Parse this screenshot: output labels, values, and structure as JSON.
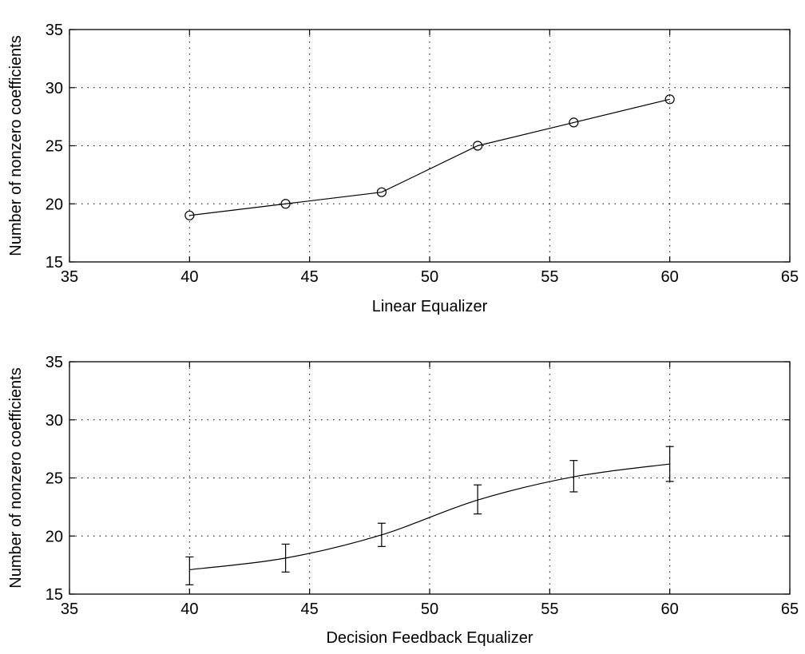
{
  "chart_data": [
    {
      "type": "line",
      "title": "",
      "xlabel": "Linear Equalizer",
      "ylabel": "Number of nonzero coefficients",
      "xlim": [
        35,
        65
      ],
      "ylim": [
        15,
        35
      ],
      "xticks": [
        35,
        40,
        45,
        50,
        55,
        60,
        65
      ],
      "yticks": [
        15,
        20,
        25,
        30,
        35
      ],
      "grid": true,
      "marker": "circle",
      "x": [
        40,
        44,
        48,
        52,
        56,
        60
      ],
      "y": [
        19,
        20,
        21,
        25,
        27,
        29
      ]
    },
    {
      "type": "line",
      "title": "",
      "xlabel": "Decision Feedback Equalizer",
      "ylabel": "Number of nonzero coefficients",
      "xlim": [
        35,
        65
      ],
      "ylim": [
        15,
        35
      ],
      "xticks": [
        35,
        40,
        45,
        50,
        55,
        60,
        65
      ],
      "yticks": [
        15,
        20,
        25,
        30,
        35
      ],
      "grid": true,
      "marker": "errorbar",
      "x": [
        40,
        44,
        48,
        52,
        56,
        60
      ],
      "y": [
        17.1,
        18.1,
        20.1,
        23.1,
        25.1,
        26.2
      ],
      "err_low": [
        15.8,
        16.9,
        19.1,
        21.9,
        23.8,
        24.7
      ],
      "err_high": [
        18.2,
        19.3,
        21.1,
        24.4,
        26.5,
        27.7
      ]
    }
  ]
}
